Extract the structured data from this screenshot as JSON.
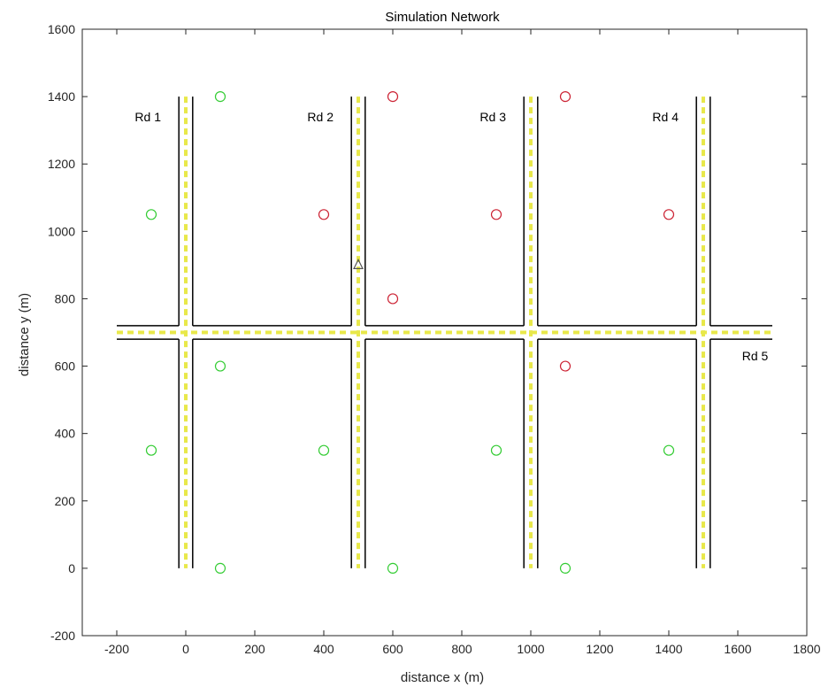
{
  "chart_data": {
    "type": "scatter",
    "title": "Simulation Network",
    "xlabel": "distance x (m)",
    "ylabel": "distance y (m)",
    "xlim": [
      -300,
      1800
    ],
    "ylim": [
      -200,
      1600
    ],
    "xticks": [
      -200,
      0,
      200,
      400,
      600,
      800,
      1000,
      1200,
      1400,
      1600,
      1800
    ],
    "yticks": [
      -200,
      0,
      200,
      400,
      600,
      800,
      1000,
      1200,
      1400,
      1600
    ],
    "grid": false,
    "roads": [
      {
        "label": "Rd 1",
        "orientation": "vertical",
        "x": 0,
        "y_range": [
          0,
          1400
        ]
      },
      {
        "label": "Rd 2",
        "orientation": "vertical",
        "x": 500,
        "y_range": [
          0,
          1400
        ]
      },
      {
        "label": "Rd 3",
        "orientation": "vertical",
        "x": 1000,
        "y_range": [
          0,
          1400
        ]
      },
      {
        "label": "Rd 4",
        "orientation": "vertical",
        "x": 1500,
        "y_range": [
          0,
          1400
        ]
      },
      {
        "label": "Rd 5",
        "orientation": "horizontal",
        "y": 700,
        "x_range": [
          -200,
          1700
        ]
      }
    ],
    "series": [
      {
        "color": "#33cc33",
        "marker": "circle",
        "points": [
          [
            100,
            1400
          ],
          [
            -100,
            1050
          ],
          [
            100,
            600
          ],
          [
            -100,
            350
          ],
          [
            100,
            0
          ],
          [
            400,
            350
          ],
          [
            600,
            0
          ],
          [
            900,
            350
          ],
          [
            1100,
            0
          ],
          [
            1400,
            350
          ]
        ]
      },
      {
        "color": "#cc2233",
        "marker": "circle",
        "points": [
          [
            600,
            1400
          ],
          [
            1100,
            1400
          ],
          [
            400,
            1050
          ],
          [
            900,
            1050
          ],
          [
            1400,
            1050
          ],
          [
            600,
            800
          ],
          [
            1100,
            600
          ]
        ]
      }
    ],
    "vehicle": {
      "x": 500,
      "y": 900,
      "marker": "triangle",
      "color": "#555555"
    },
    "colors": {
      "road_edge": "#000000",
      "road_center": "#e8e84a",
      "axis": "#262626"
    }
  }
}
